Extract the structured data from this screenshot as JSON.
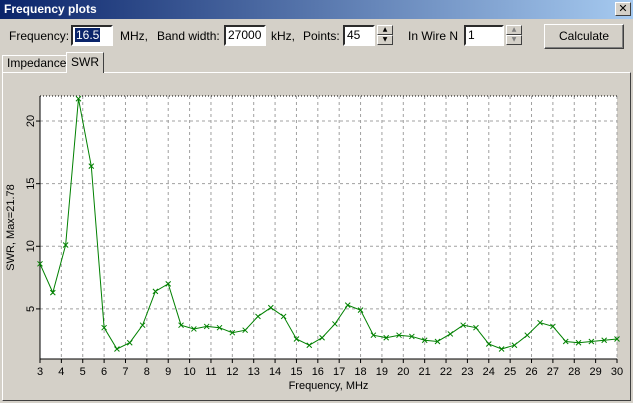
{
  "window": {
    "title": "Frequency plots",
    "close_glyph": "✕"
  },
  "controls": {
    "frequency_label": "Frequency:",
    "frequency_value": "16.5",
    "frequency_unit": "MHz,",
    "bandwidth_label": "Band width:",
    "bandwidth_value": "27000",
    "bandwidth_unit": "kHz,",
    "points_label": "Points:",
    "points_value": "45",
    "wire_label": "In Wire N",
    "wire_value": "1",
    "calculate_label": "Calculate"
  },
  "tabs": [
    {
      "label": "Impedance",
      "active": false
    },
    {
      "label": "SWR",
      "active": true
    }
  ],
  "icons": {
    "spin_up": "▲",
    "spin_down": "▼"
  },
  "colors": {
    "series": "#008000",
    "grid": "#a0a0a0"
  },
  "chart_data": {
    "type": "line",
    "title": "",
    "xlabel": "Frequency, MHz",
    "ylabel": "SWR,  Max=21.78",
    "xlim": [
      3,
      30
    ],
    "ylim": [
      1,
      22
    ],
    "x_ticks": [
      3,
      4,
      5,
      6,
      7,
      8,
      9,
      10,
      11,
      12,
      13,
      14,
      15,
      16,
      17,
      18,
      19,
      20,
      21,
      22,
      23,
      24,
      25,
      26,
      27,
      28,
      29,
      30
    ],
    "y_ticks": [
      5,
      10,
      15,
      20
    ],
    "grid": true,
    "series": [
      {
        "x": [
          3.0,
          3.6,
          4.2,
          4.8,
          5.4,
          6.0,
          6.6,
          7.2,
          7.8,
          8.4,
          9.0,
          9.6,
          10.2,
          10.8,
          11.4,
          12.0,
          12.6,
          13.2,
          13.8,
          14.4,
          15.0,
          15.6,
          16.2,
          16.8,
          17.4,
          18.0,
          18.6,
          19.2,
          19.8,
          20.4,
          21.0,
          21.6,
          22.2,
          22.8,
          23.4,
          24.0,
          24.6,
          25.2,
          25.8,
          26.4,
          27.0,
          27.6,
          28.2,
          28.8,
          29.4,
          30.0
        ],
        "y": [
          8.6,
          6.3,
          10.1,
          21.78,
          16.4,
          3.5,
          1.8,
          2.3,
          3.7,
          6.4,
          7.0,
          3.7,
          3.4,
          3.6,
          3.5,
          3.1,
          3.3,
          4.4,
          5.1,
          4.4,
          2.6,
          2.1,
          2.7,
          3.8,
          5.3,
          4.9,
          2.9,
          2.7,
          2.9,
          2.8,
          2.5,
          2.4,
          3.0,
          3.7,
          3.5,
          2.2,
          1.8,
          2.1,
          2.9,
          3.9,
          3.6,
          2.4,
          2.3,
          2.4,
          2.5,
          2.6
        ]
      }
    ]
  }
}
